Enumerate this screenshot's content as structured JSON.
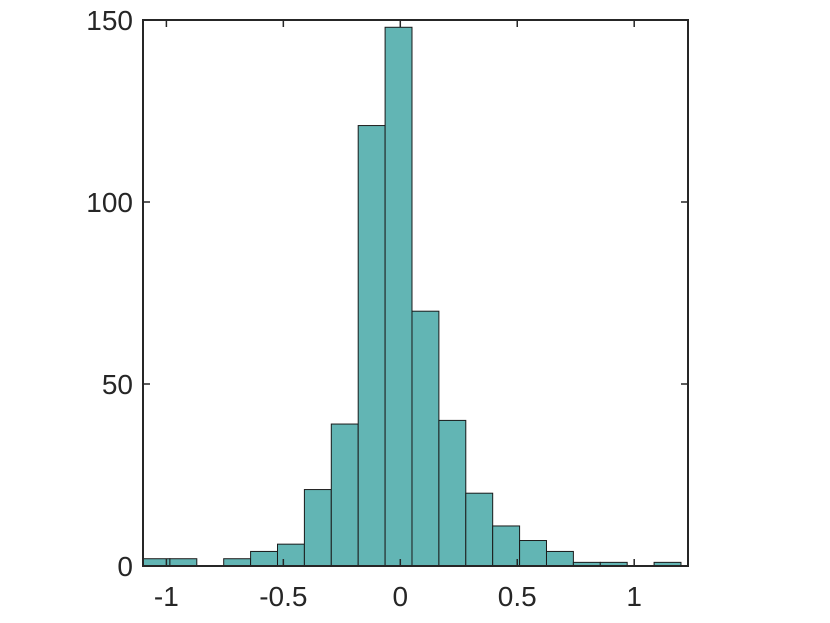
{
  "chart_data": {
    "type": "bar",
    "title": "",
    "xlabel": "",
    "ylabel": "",
    "xlim": [
      -1.1,
      1.23
    ],
    "ylim": [
      0,
      150
    ],
    "xticks": [
      -1,
      -0.5,
      0,
      0.5,
      1
    ],
    "xtick_labels": [
      "-1",
      "-0.5",
      "0",
      "0.5",
      "1"
    ],
    "yticks": [
      0,
      50,
      100,
      150
    ],
    "ytick_labels": [
      "0",
      "50",
      "100",
      "150"
    ],
    "bin_edges": [
      -1.1,
      -0.985,
      -0.87,
      -0.755,
      -0.64,
      -0.525,
      -0.41,
      -0.295,
      -0.18,
      -0.065,
      0.05,
      0.165,
      0.28,
      0.395,
      0.51,
      0.625,
      0.74,
      0.855,
      0.97,
      1.085,
      1.2
    ],
    "values": [
      2,
      2,
      0,
      2,
      4,
      6,
      21,
      39,
      121,
      148,
      70,
      40,
      20,
      11,
      7,
      4,
      1,
      1,
      0,
      1
    ],
    "bar_color": "#62b5b4",
    "edge_color": "#1a1a1a",
    "grid": false,
    "box": true
  }
}
